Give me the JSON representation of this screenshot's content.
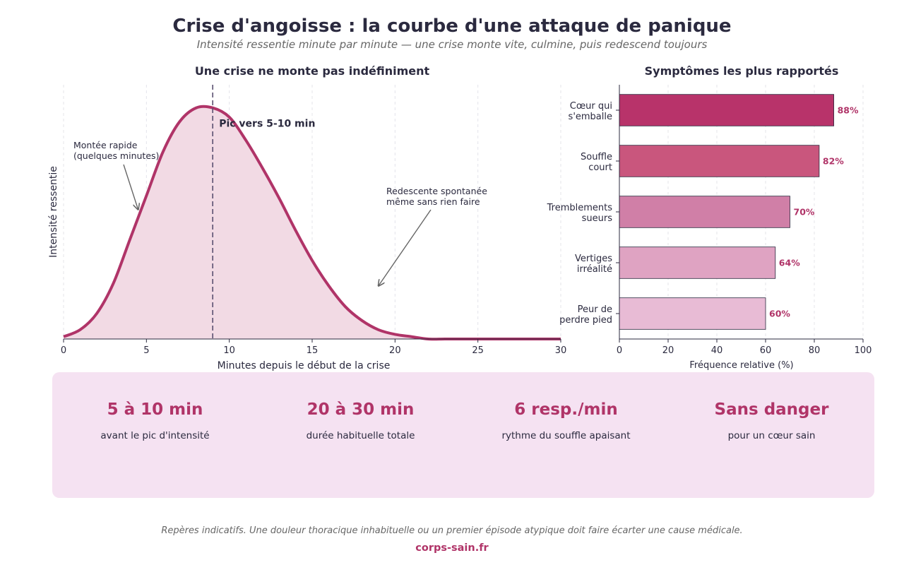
{
  "header": {
    "title": "Crise d'angoisse : la courbe d'une attaque de panique",
    "subtitle": "Intensité ressentie minute par minute — une crise monte vite, culmine, puis redescend toujours"
  },
  "chart_data": [
    {
      "type": "area",
      "title": "Une crise ne monte pas indéfiniment",
      "xlabel": "Minutes depuis le début de la crise",
      "ylabel": "Intensité ressentie",
      "xlim": [
        0,
        30
      ],
      "ylim": [
        0,
        1.1
      ],
      "xticks": [
        0,
        5,
        10,
        15,
        20,
        25,
        30
      ],
      "show_yticks": false,
      "grid": "vertical dashed",
      "peak_minute": 9,
      "x": [
        0,
        1,
        2,
        3,
        4,
        5,
        6,
        7,
        8,
        9,
        10,
        11,
        12,
        13,
        14,
        15,
        16,
        17,
        18,
        19,
        20,
        21,
        22,
        23,
        24,
        25,
        26,
        27,
        28,
        29,
        30
      ],
      "y": [
        0.01,
        0.04,
        0.11,
        0.24,
        0.43,
        0.62,
        0.81,
        0.94,
        1.0,
        1.0,
        0.96,
        0.86,
        0.74,
        0.61,
        0.47,
        0.34,
        0.23,
        0.14,
        0.08,
        0.04,
        0.02,
        0.01,
        0.0,
        0.0,
        0.0,
        0.0,
        0.0,
        0.0,
        0.0,
        0.0,
        0.0
      ],
      "annotations": [
        {
          "text_lines": [
            "Pic vers 5-10 min"
          ],
          "at": [
            9,
            1.0
          ]
        },
        {
          "text_lines": [
            "Montée rapide",
            "(quelques minutes)"
          ],
          "arrow_to": [
            4.5,
            0.56
          ]
        },
        {
          "text_lines": [
            "Redescente spontanée",
            "même sans rien faire"
          ],
          "arrow_to": [
            19,
            0.23
          ]
        }
      ],
      "colors": {
        "line": "#b03468",
        "fill": "#f2dae4",
        "peak_line": "#5a5070",
        "arrow": "#666666"
      }
    },
    {
      "type": "bar",
      "orientation": "horizontal",
      "title": "Symptômes les plus rapportés",
      "xlabel": "Fréquence relative (%)",
      "xlim": [
        0,
        100
      ],
      "xticks": [
        0,
        20,
        40,
        60,
        80,
        100
      ],
      "grid": "vertical dashed",
      "categories": [
        [
          "Cœur qui",
          "s'emballe"
        ],
        [
          "Souffle",
          "court"
        ],
        [
          "Tremblements",
          "sueurs"
        ],
        [
          "Vertiges",
          "irréalité"
        ],
        [
          "Peur de",
          "perdre pied"
        ]
      ],
      "values": [
        88,
        82,
        70,
        64,
        60
      ],
      "value_labels": [
        "88%",
        "82%",
        "70%",
        "64%",
        "60%"
      ],
      "colors": [
        "#b8336a",
        "#c9567d",
        "#d07fa7",
        "#dfa3c2",
        "#e8bbd5"
      ],
      "label_color": "#b03468"
    }
  ],
  "stats": [
    {
      "value": "5 à 10 min",
      "label": "avant le pic d'intensité"
    },
    {
      "value": "20 à 30 min",
      "label": "durée habituelle totale"
    },
    {
      "value": "6 resp./min",
      "label": "rythme du souffle apaisant"
    },
    {
      "value": "Sans danger",
      "label": "pour un cœur sain"
    }
  ],
  "footer": {
    "disclaimer": "Repères indicatifs. Une douleur thoracique inhabituelle ou un premier épisode atypique doit faire écarter une cause médicale.",
    "brand": "corps-sain.fr"
  }
}
